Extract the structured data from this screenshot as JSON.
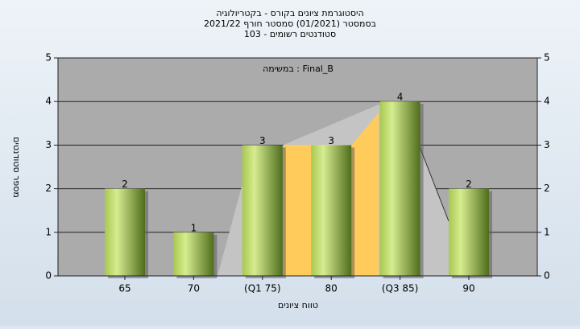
{
  "chart_data": {
    "type": "bar",
    "title": "היסטוגרמת ציונים בקורס - בקטריולוגיה",
    "subtitle": "בסמסטר  (01/2021)  סמסטר חורף 2021/22",
    "subtitle2": "103 - סטודנטים רשומים",
    "annotation": "במשימה : Final_B",
    "y_label": "מספר סטודנטים",
    "x_label": "טווח ציונים",
    "categories": [
      "65",
      "70",
      "(Q1 75)",
      "80",
      "(Q3 85)",
      "90"
    ],
    "values": [
      2,
      1,
      3,
      3,
      4,
      2
    ],
    "ylim": [
      0,
      5
    ],
    "yticks": [
      0,
      1,
      2,
      3,
      4,
      5
    ],
    "grid": true
  }
}
